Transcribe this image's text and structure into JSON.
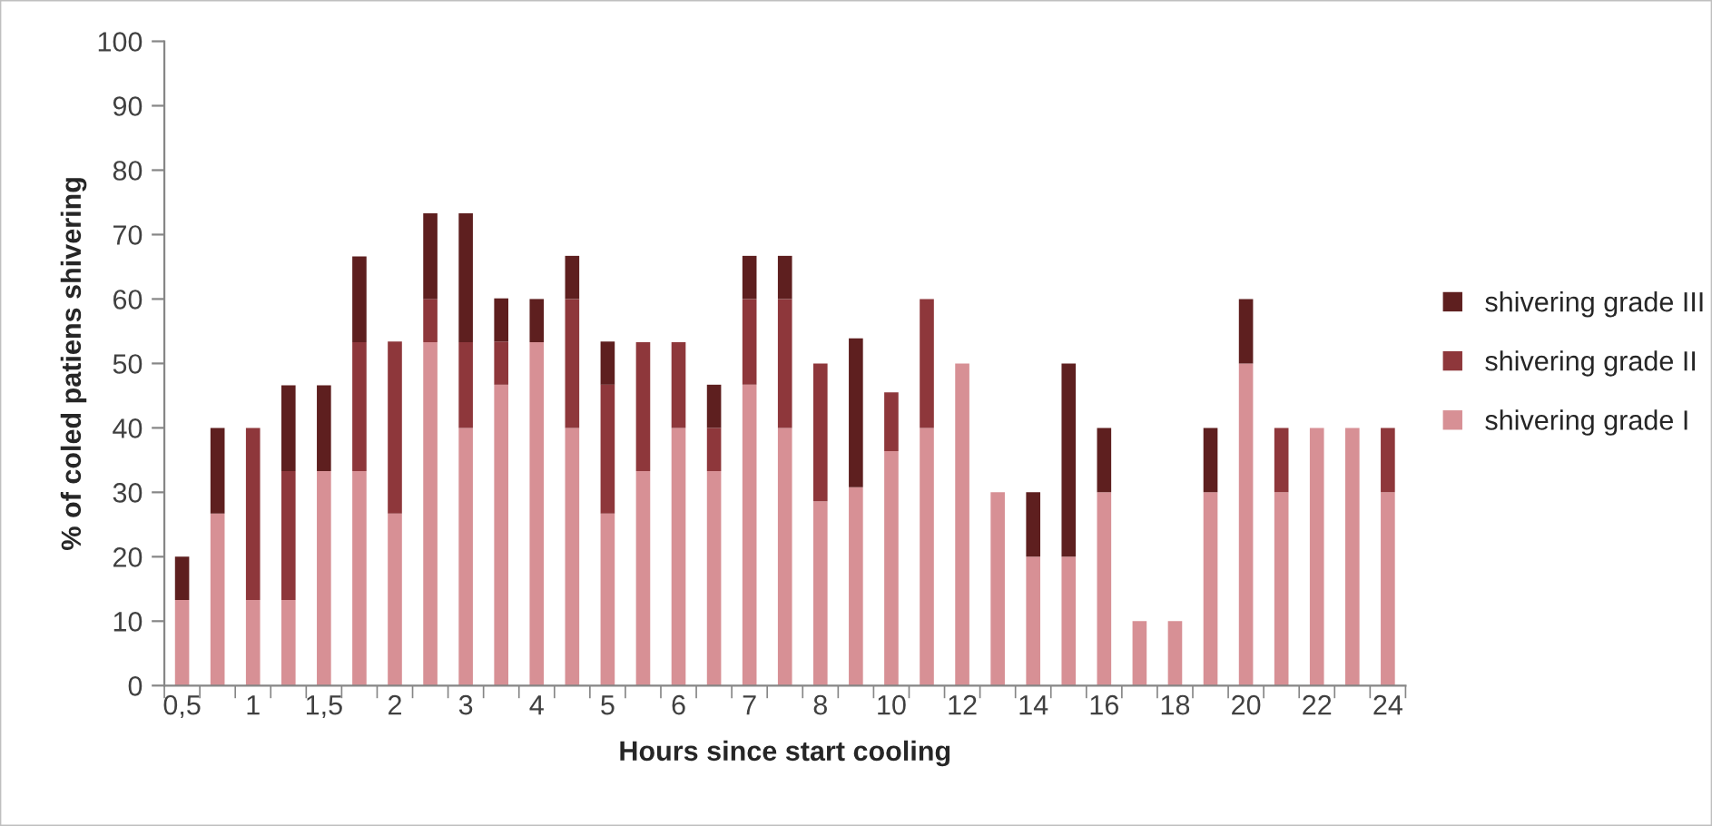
{
  "chart_data": {
    "type": "bar",
    "stacked": true,
    "xlabel": "Hours since start cooling",
    "ylabel": "% of coled patiens shivering",
    "categories": [
      "0,5",
      null,
      "1",
      null,
      "1,5",
      null,
      "2",
      null,
      "3",
      null,
      "4",
      null,
      "5",
      null,
      "6",
      null,
      "7",
      null,
      "8",
      null,
      "10",
      null,
      "12",
      null,
      "14",
      null,
      "16",
      null,
      "18",
      null,
      "20",
      null,
      "22",
      null,
      "24"
    ],
    "series": [
      {
        "name": "shivering grade I",
        "color": "#d79095",
        "values": [
          13.3,
          26.7,
          13.3,
          13.3,
          33.3,
          33.3,
          26.7,
          53.3,
          40,
          46.7,
          53.3,
          40,
          26.7,
          33.3,
          40,
          33.3,
          46.7,
          40,
          28.6,
          30.8,
          36.4,
          40,
          50,
          30,
          20,
          20,
          30,
          10,
          10,
          30,
          50,
          30,
          40,
          40,
          30
        ]
      },
      {
        "name": "shivering grade II",
        "color": "#8e373b",
        "values": [
          0,
          0,
          26.7,
          20,
          0,
          20,
          26.7,
          6.7,
          13.3,
          6.7,
          0,
          20,
          20,
          20,
          13.3,
          6.7,
          13.3,
          20,
          21.4,
          0,
          9.1,
          20,
          0,
          0,
          0,
          0,
          0,
          0,
          0,
          0,
          0,
          10,
          0,
          0,
          10
        ]
      },
      {
        "name": "shivering grade III",
        "color": "#5e1f1f",
        "values": [
          6.7,
          13.3,
          0,
          13.3,
          13.3,
          13.3,
          0,
          13.3,
          20,
          6.7,
          6.7,
          6.7,
          6.7,
          0,
          0,
          6.7,
          6.7,
          6.7,
          0,
          23.1,
          0,
          0,
          0,
          0,
          10,
          30,
          10,
          0,
          0,
          10,
          10,
          0,
          0,
          0,
          0
        ]
      }
    ],
    "ylim": [
      0,
      100
    ],
    "yticks": [
      0,
      10,
      20,
      30,
      40,
      50,
      60,
      70,
      80,
      90,
      100
    ],
    "legend": "right"
  }
}
